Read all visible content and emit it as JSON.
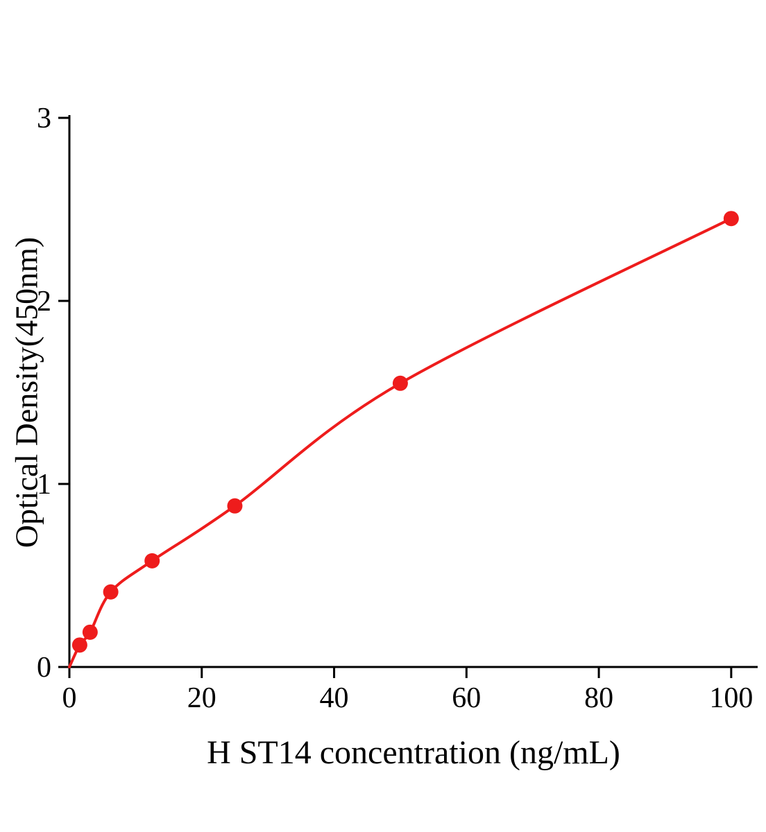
{
  "chart_data": {
    "type": "scatter",
    "title": "",
    "xlabel": "H ST14 concentration (ng/mL)",
    "ylabel": "Optical Density(450nm)",
    "x": [
      1.56,
      3.13,
      6.25,
      12.5,
      25,
      50,
      100
    ],
    "y": [
      0.12,
      0.19,
      0.41,
      0.58,
      0.88,
      1.55,
      2.45
    ],
    "curve_start": {
      "x": 0,
      "y": 0
    },
    "xlim": [
      0,
      104
    ],
    "ylim": [
      0,
      3
    ],
    "xticks": [
      0,
      20,
      40,
      60,
      80,
      100
    ],
    "yticks": [
      0,
      1,
      2,
      3
    ],
    "grid": false,
    "legend": "none",
    "point_color": "#ee1c1c",
    "line_color": "#ee1c1c",
    "axis_color": "#000000",
    "point_radius": 11,
    "line_width": 4
  }
}
